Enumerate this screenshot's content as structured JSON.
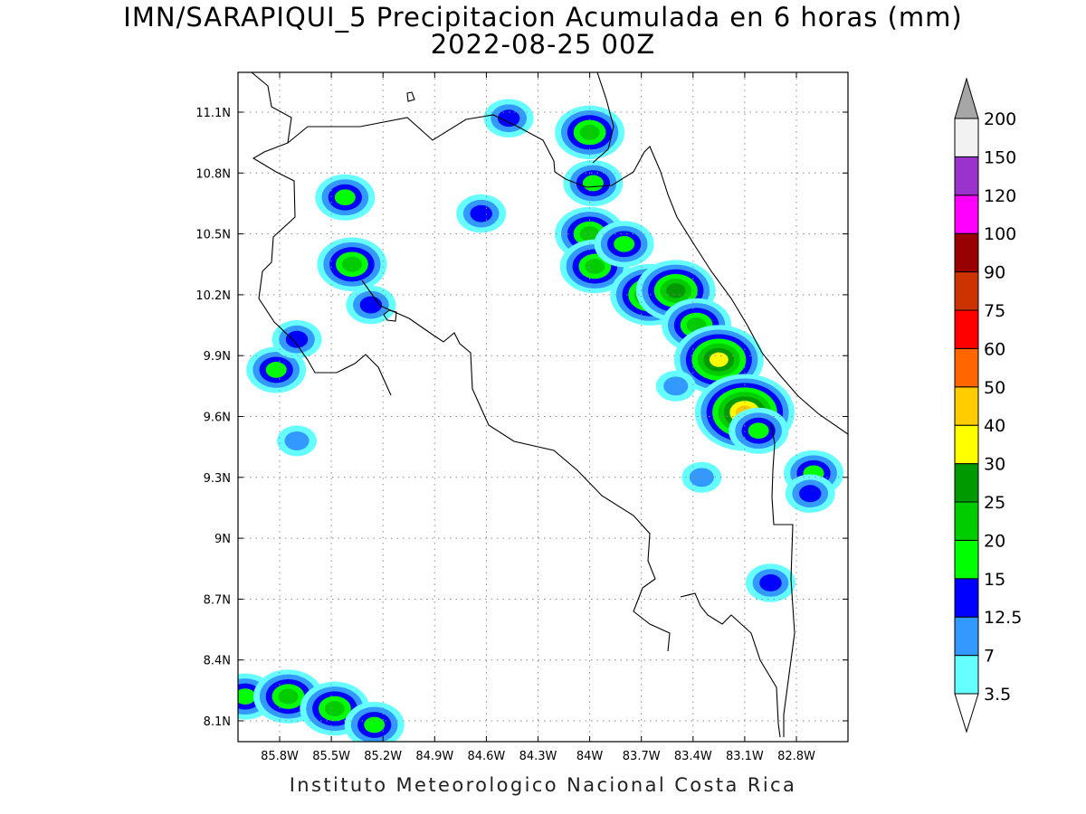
{
  "title_line1": "IMN/SARAPIQUI_5 Precipitacion Acumulada en 6 horas (mm)",
  "title_line2": "2022-08-25 00Z",
  "footer": "Instituto Meteorologico Nacional Costa Rica",
  "map": {
    "lon_range": [
      -86.05,
      -82.6
    ],
    "lat_range": [
      8.0,
      11.35
    ],
    "lat_ticks": [
      {
        "value": 11.1,
        "label": "11.1N"
      },
      {
        "value": 10.8,
        "label": "10.8N"
      },
      {
        "value": 10.5,
        "label": "10.5N"
      },
      {
        "value": 10.2,
        "label": "10.2N"
      },
      {
        "value": 9.9,
        "label": "9.9N"
      },
      {
        "value": 9.6,
        "label": "9.6N"
      },
      {
        "value": 9.3,
        "label": "9.3N"
      },
      {
        "value": 9.0,
        "label": "9N"
      },
      {
        "value": 8.7,
        "label": "8.7N"
      },
      {
        "value": 8.4,
        "label": "8.4N"
      },
      {
        "value": 8.1,
        "label": "8.1N"
      }
    ],
    "lon_ticks": [
      {
        "value": -85.8,
        "label": "85.8W"
      },
      {
        "value": -85.5,
        "label": "85.5W"
      },
      {
        "value": -85.2,
        "label": "85.2W"
      },
      {
        "value": -84.9,
        "label": "84.9W"
      },
      {
        "value": -84.6,
        "label": "84.6W"
      },
      {
        "value": -84.3,
        "label": "84.3W"
      },
      {
        "value": -84.0,
        "label": "84W"
      },
      {
        "value": -83.7,
        "label": "83.7W"
      },
      {
        "value": -83.4,
        "label": "83.4W"
      },
      {
        "value": -83.1,
        "label": "83.1W"
      },
      {
        "value": -82.8,
        "label": "82.8W"
      }
    ],
    "grid": true
  },
  "colorbar": {
    "labels": [
      "3.5",
      "7",
      "12.5",
      "15",
      "20",
      "25",
      "30",
      "40",
      "50",
      "60",
      "75",
      "90",
      "100",
      "120",
      "150",
      "200"
    ],
    "colors": [
      "#66ffff",
      "#3399ff",
      "#0000ff",
      "#00ff00",
      "#00cc00",
      "#009900",
      "#ffff00",
      "#ffcc00",
      "#ff6600",
      "#ff0000",
      "#cc3300",
      "#990000",
      "#ff00ff",
      "#9933cc",
      "#f2f2f2"
    ],
    "top_arrow_color": "#a6a6a6",
    "bottom_arrow_color": "#ffffff"
  },
  "precip_cells": [
    {
      "lon": -84.0,
      "lat": 11.0,
      "level": 5
    },
    {
      "lon": -83.98,
      "lat": 10.75,
      "level": 4
    },
    {
      "lon": -84.47,
      "lat": 11.07,
      "level": 3
    },
    {
      "lon": -85.42,
      "lat": 10.68,
      "level": 4
    },
    {
      "lon": -85.38,
      "lat": 10.35,
      "level": 5
    },
    {
      "lon": -85.27,
      "lat": 10.15,
      "level": 3
    },
    {
      "lon": -84.0,
      "lat": 10.5,
      "level": 5
    },
    {
      "lon": -83.97,
      "lat": 10.34,
      "level": 5
    },
    {
      "lon": -83.8,
      "lat": 10.45,
      "level": 4
    },
    {
      "lon": -84.63,
      "lat": 10.6,
      "level": 3
    },
    {
      "lon": -83.65,
      "lat": 10.2,
      "level": 6
    },
    {
      "lon": -83.5,
      "lat": 10.22,
      "level": 6
    },
    {
      "lon": -83.38,
      "lat": 10.05,
      "level": 5
    },
    {
      "lon": -83.25,
      "lat": 9.88,
      "level": 7
    },
    {
      "lon": -83.1,
      "lat": 9.62,
      "level": 8
    },
    {
      "lon": -83.02,
      "lat": 9.53,
      "level": 4
    },
    {
      "lon": -85.82,
      "lat": 9.83,
      "level": 4
    },
    {
      "lon": -85.7,
      "lat": 9.98,
      "level": 3
    },
    {
      "lon": -85.7,
      "lat": 9.48,
      "level": 2
    },
    {
      "lon": -82.7,
      "lat": 9.32,
      "level": 4
    },
    {
      "lon": -82.72,
      "lat": 9.22,
      "level": 3
    },
    {
      "lon": -82.95,
      "lat": 8.78,
      "level": 3
    },
    {
      "lon": -86.0,
      "lat": 8.22,
      "level": 4
    },
    {
      "lon": -85.75,
      "lat": 8.22,
      "level": 5
    },
    {
      "lon": -85.48,
      "lat": 8.16,
      "level": 5
    },
    {
      "lon": -85.25,
      "lat": 8.08,
      "level": 4
    },
    {
      "lon": -83.5,
      "lat": 9.75,
      "level": 2
    },
    {
      "lon": -83.35,
      "lat": 9.3,
      "level": 2
    }
  ]
}
